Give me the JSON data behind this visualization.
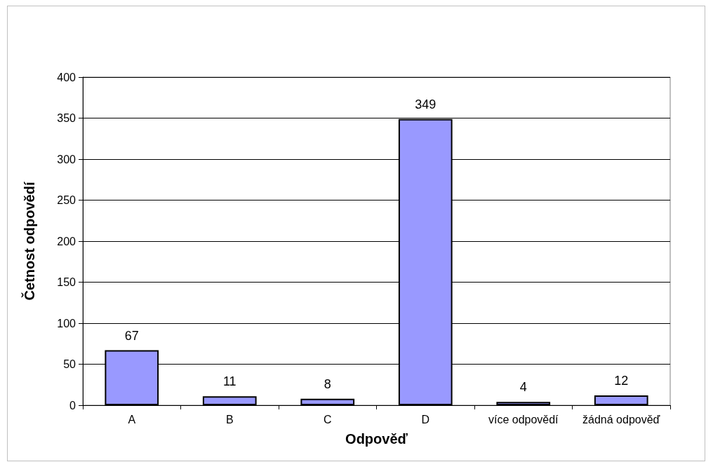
{
  "chart_data": {
    "type": "bar",
    "xlabel": "Odpověď",
    "ylabel": "Četnost odpovědí",
    "categories": [
      "A",
      "B",
      "C",
      "D",
      "více odpovědí",
      "žádná odpověď"
    ],
    "values": [
      67,
      11,
      8,
      349,
      4,
      12
    ],
    "color": "#9999ff",
    "ylim": [
      0,
      400
    ],
    "yticks": [
      0,
      50,
      100,
      150,
      200,
      250,
      300,
      350,
      400
    ],
    "grid": "y",
    "data_labels": true
  }
}
